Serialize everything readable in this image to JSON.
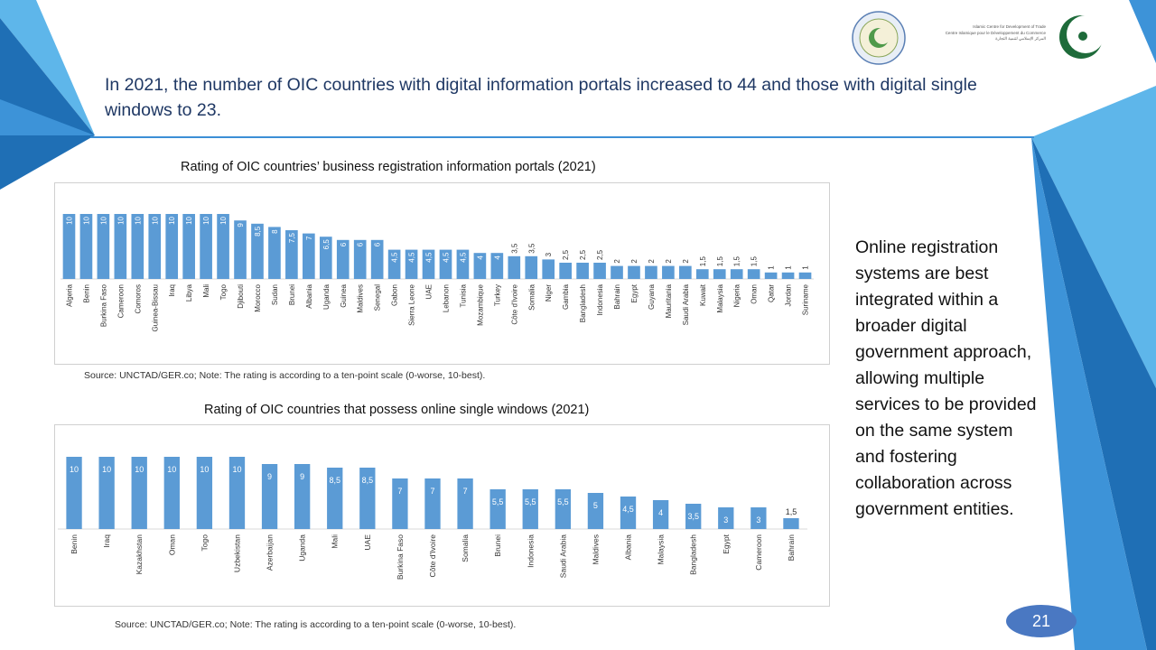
{
  "headline": "In 2021, the number of OIC countries with digital information portals increased to 44 and those with digital single windows to 23.",
  "side_text": "Online registration systems are best integrated within a broader digital government approach, allowing multiple services to be provided on the same system and fostering collaboration across government entities.",
  "page_number": "21",
  "logo": {
    "org_line1": "Islamic Centre for Development of Trade",
    "org_line2": "Centre Islamique pour le Développement du Commerce",
    "org_line3": "المركز الإسلامي لتنمية التجارة",
    "seal_icon": "icdt-seal-icon",
    "oic_icon": "oic-crescent-icon"
  },
  "colors": {
    "bar": "#5b9bd5",
    "accent": "#1f6fb5",
    "headline": "#1f3864"
  },
  "chart_data": [
    {
      "type": "bar",
      "title": "Rating of OIC countries’ business registration information portals (2021)",
      "categories": [
        "Algeria",
        "Benin",
        "Burkina Faso",
        "Cameroon",
        "Comoros",
        "Guinea-Bissau",
        "Iraq",
        "Libya",
        "Mali",
        "Togo",
        "Djibouti",
        "Morocco",
        "Sudan",
        "Brunei",
        "Albania",
        "Uganda",
        "Guinea",
        "Maldives",
        "Senegal",
        "Gabon",
        "Sierra Leone",
        "UAE",
        "Lebanon",
        "Tunisia",
        "Mozambique",
        "Turkey",
        "Côte d'Ivoire",
        "Somalia",
        "Niger",
        "Gambia",
        "Bangladesh",
        "Indonesia",
        "Bahrain",
        "Egypt",
        "Guyana",
        "Mauritania",
        "Saudi Arabia",
        "Kuwait",
        "Malaysia",
        "Nigeria",
        "Oman",
        "Qatar",
        "Jordan",
        "Suriname"
      ],
      "values": [
        10,
        10,
        10,
        10,
        10,
        10,
        10,
        10,
        10,
        10,
        9,
        8.5,
        8,
        7.5,
        7,
        6.5,
        6,
        6,
        6,
        4.5,
        4.5,
        4.5,
        4.5,
        4.5,
        4,
        4,
        3.5,
        3.5,
        3,
        2.5,
        2.5,
        2.5,
        2,
        2,
        2,
        2,
        2,
        1.5,
        1.5,
        1.5,
        1.5,
        1,
        1,
        1
      ],
      "labels": [
        "10",
        "10",
        "10",
        "10",
        "10",
        "10",
        "10",
        "10",
        "10",
        "10",
        "9",
        "8,5",
        "8",
        "7,5",
        "7",
        "6,5",
        "6",
        "6",
        "6",
        "4,5",
        "4,5",
        "4,5",
        "4,5",
        "4,5",
        "4",
        "4",
        "3,5",
        "3,5",
        "3",
        "2,5",
        "2,5",
        "2,5",
        "2",
        "2",
        "2",
        "2",
        "2",
        "1,5",
        "1,5",
        "1,5",
        "1,5",
        "1",
        "1",
        "1"
      ],
      "ylim": [
        0,
        10
      ],
      "source": "Source: UNCTAD/GER.co; Note: The rating is according to a ten-point scale (0-worse, 10-best)."
    },
    {
      "type": "bar",
      "title": "Rating of OIC countries that possess online single windows (2021)",
      "categories": [
        "Benin",
        "Iraq",
        "Kazakhstan",
        "Oman",
        "Togo",
        "Uzbekistan",
        "Azerbaijan",
        "Uganda",
        "Mali",
        "UAE",
        "Burkina Faso",
        "Côte d'Ivoire",
        "Somalia",
        "Brunei",
        "Indonesia",
        "Saudi Arabia",
        "Maldives",
        "Albania",
        "Malaysia",
        "Bangladesh",
        "Egypt",
        "Cameroon",
        "Bahrain"
      ],
      "values": [
        10,
        10,
        10,
        10,
        10,
        10,
        9,
        9,
        8.5,
        8.5,
        7,
        7,
        7,
        5.5,
        5.5,
        5.5,
        5,
        4.5,
        4,
        3.5,
        3,
        3,
        1.5
      ],
      "labels": [
        "10",
        "10",
        "10",
        "10",
        "10",
        "10",
        "9",
        "9",
        "8,5",
        "8,5",
        "7",
        "7",
        "7",
        "5,5",
        "5,5",
        "5,5",
        "5",
        "4,5",
        "4",
        "3,5",
        "3",
        "3",
        "1,5"
      ],
      "ylim": [
        0,
        10
      ],
      "source": "Source: UNCTAD/GER.co; Note: The rating is according to a ten-point scale (0-worse, 10-best)."
    }
  ]
}
